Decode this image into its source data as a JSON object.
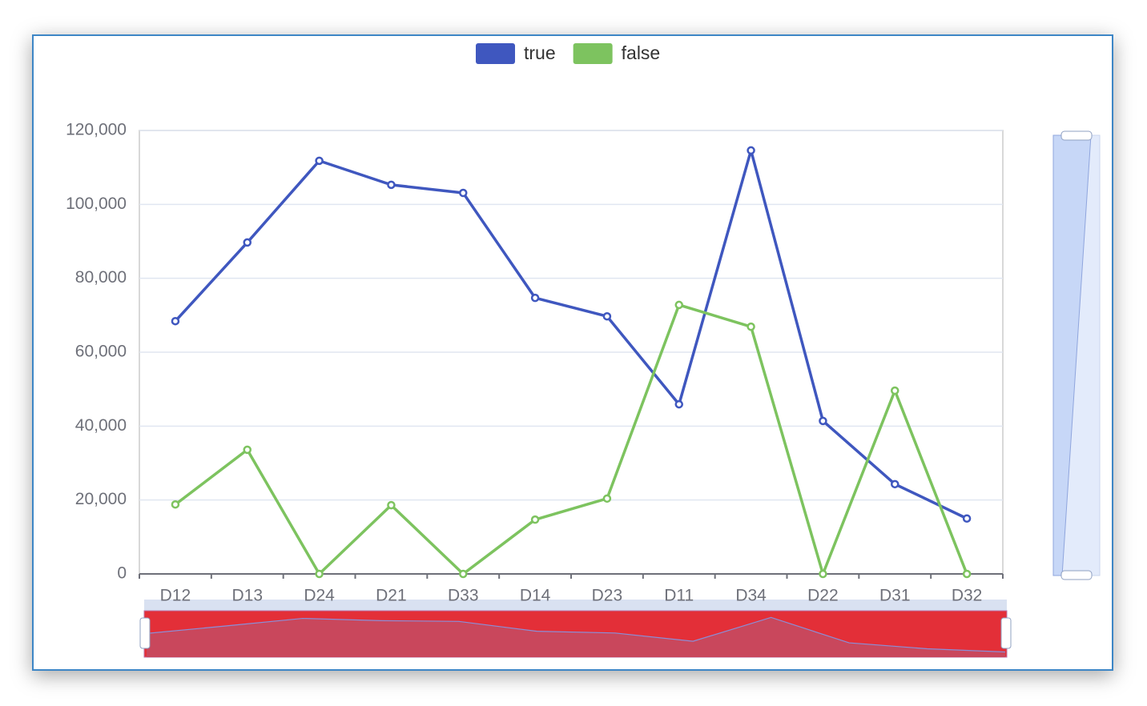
{
  "chart_data": {
    "type": "line",
    "categories": [
      "D12",
      "D13",
      "D24",
      "D21",
      "D33",
      "D14",
      "D23",
      "D11",
      "D34",
      "D22",
      "D31",
      "D32"
    ],
    "series": [
      {
        "name": "true",
        "color": "#3f57bf",
        "values": [
          68400,
          89700,
          111800,
          105300,
          103100,
          74700,
          69700,
          45900,
          114600,
          41400,
          24300,
          15000
        ]
      },
      {
        "name": "false",
        "color": "#7dc35f",
        "values": [
          18800,
          33600,
          0,
          18600,
          0,
          14700,
          20400,
          72800,
          66900,
          0,
          49600,
          0
        ]
      }
    ],
    "ylim": [
      0,
      120000
    ],
    "yticks": [
      0,
      {
        "value": 20000,
        "label": "20,000"
      },
      {
        "value": 40000,
        "label": "40,000"
      },
      {
        "value": 60000,
        "label": "60,000"
      },
      {
        "value": 80000,
        "label": "80,000"
      },
      {
        "value": 100000,
        "label": "100,000"
      },
      {
        "value": 120000,
        "label": "120,000"
      }
    ],
    "grid": true
  }
}
